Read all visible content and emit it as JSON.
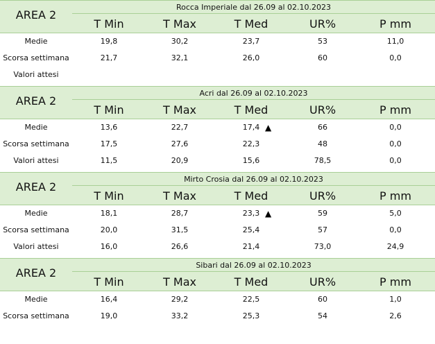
{
  "columns": [
    "T Min",
    "T Max",
    "T Med",
    "UR%",
    "P mm"
  ],
  "row_labels": [
    "Medie",
    "Scorsa settimana",
    "Valori attesi"
  ],
  "trend_symbol": "▲",
  "colors": {
    "header_band": "#ddeed3",
    "rule": "#a9cf96"
  },
  "sections": [
    {
      "area": "AREA 2",
      "title": "Rocca Imperiale  dal 26.09 al 02.10.2023",
      "rows": [
        {
          "label": "Medie",
          "values": [
            "19,8",
            "30,2",
            "23,7",
            "53",
            "11,0"
          ]
        },
        {
          "label": "Scorsa settimana",
          "values": [
            "21,7",
            "32,1",
            "26,0",
            "60",
            "0,0"
          ]
        },
        {
          "label": "Valori attesi",
          "values": [
            "",
            "",
            "",
            "",
            ""
          ]
        }
      ]
    },
    {
      "area": "AREA 2",
      "title": "Acri dal 26.09 al 02.10.2023",
      "rows": [
        {
          "label": "Medie",
          "values": [
            "13,6",
            "22,7",
            "17,4",
            "66",
            "0,0"
          ],
          "tmed_trend": "▲"
        },
        {
          "label": "Scorsa settimana",
          "values": [
            "17,5",
            "27,6",
            "22,3",
            "48",
            "0,0"
          ]
        },
        {
          "label": "Valori attesi",
          "values": [
            "11,5",
            "20,9",
            "15,6",
            "78,5",
            "0,0"
          ]
        }
      ]
    },
    {
      "area": "AREA 2",
      "title": "Mirto Crosia dal 26.09 al 02.10.2023",
      "rows": [
        {
          "label": "Medie",
          "values": [
            "18,1",
            "28,7",
            "23,3",
            "59",
            "5,0"
          ],
          "tmed_trend": "▲"
        },
        {
          "label": "Scorsa settimana",
          "values": [
            "20,0",
            "31,5",
            "25,4",
            "57",
            "0,0"
          ]
        },
        {
          "label": "Valori attesi",
          "values": [
            "16,0",
            "26,6",
            "21,4",
            "73,0",
            "24,9"
          ]
        }
      ]
    },
    {
      "area": "AREA 2",
      "title": "Sibari dal 26.09 al 02.10.2023",
      "rows": [
        {
          "label": "Medie",
          "values": [
            "16,4",
            "29,2",
            "22,5",
            "60",
            "1,0"
          ]
        },
        {
          "label": "Scorsa settimana",
          "values": [
            "19,0",
            "33,2",
            "25,3",
            "54",
            "2,6"
          ]
        }
      ]
    }
  ]
}
